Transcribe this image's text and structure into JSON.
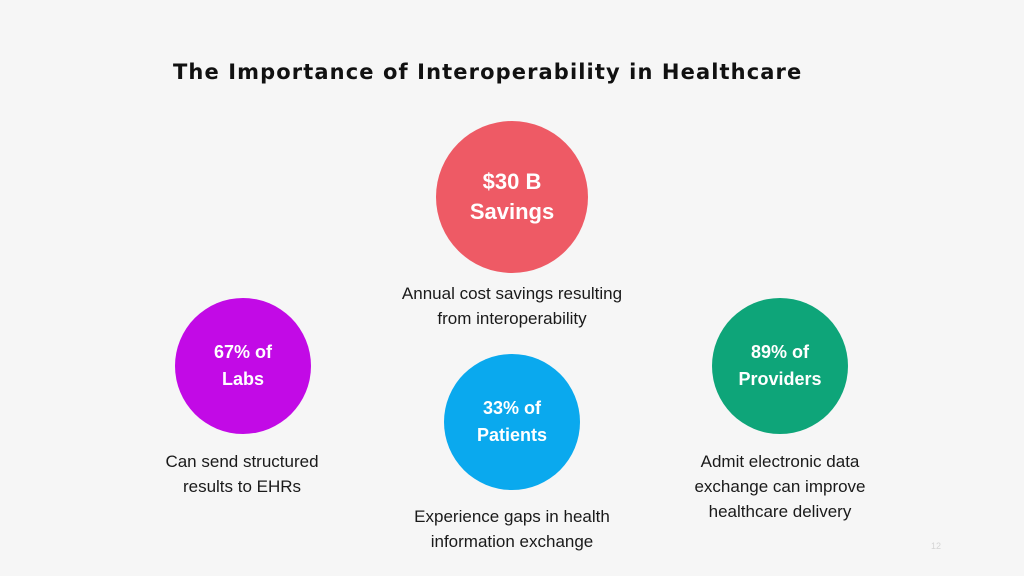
{
  "slide": {
    "title": "The Importance of Interoperability in Healthcare",
    "page_number": "12"
  },
  "stats": {
    "savings": {
      "line1": "$30 B",
      "line2": "Savings",
      "desc_line1": "Annual cost savings resulting",
      "desc_line2": "from interoperability",
      "color": "#ee5a65"
    },
    "labs": {
      "line1": "67% of",
      "line2": "Labs",
      "desc_line1": "Can send structured",
      "desc_line2": "results to EHRs",
      "color": "#c20ae6"
    },
    "patients": {
      "line1": "33% of",
      "line2": "Patients",
      "desc_line1": "Experience gaps in health",
      "desc_line2": "information exchange",
      "color": "#0aa9ee"
    },
    "providers": {
      "line1": "89% of",
      "line2": "Providers",
      "desc_line1": "Admit electronic data",
      "desc_line2": "exchange can improve",
      "desc_line3": "healthcare delivery",
      "color": "#0ea579"
    }
  }
}
